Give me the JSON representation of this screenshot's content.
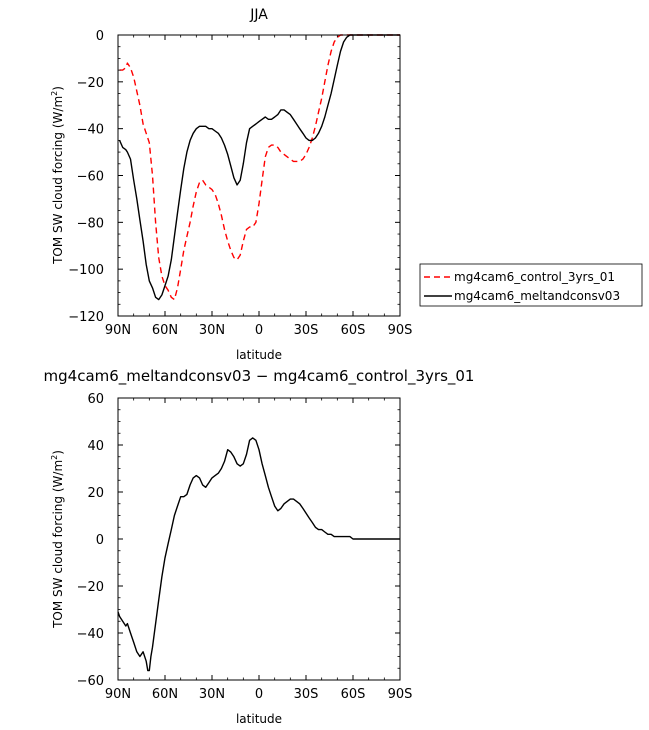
{
  "chart_data": [
    {
      "type": "line",
      "title": "JJA",
      "xlabel": "latitude",
      "ylabel": "TOM SW cloud forcing (W/m²)",
      "ylabel_text": "TOM SW cloud forcing (W/m",
      "ylabel_sup": "2",
      "ylabel_close": ")",
      "xlim": [
        90,
        -90
      ],
      "ylim": [
        -120,
        0
      ],
      "x_ticks": [
        {
          "value": 90,
          "label": "90N"
        },
        {
          "value": 60,
          "label": "60N"
        },
        {
          "value": 30,
          "label": "30N"
        },
        {
          "value": 0,
          "label": "0"
        },
        {
          "value": -30,
          "label": "30S"
        },
        {
          "value": -60,
          "label": "60S"
        },
        {
          "value": -90,
          "label": "90S"
        }
      ],
      "y_ticks": [
        0,
        -20,
        -40,
        -60,
        -80,
        -100,
        -120
      ],
      "grid": false,
      "legend": "right",
      "series": [
        {
          "name": "mg4cam6_control_3yrs_01",
          "color": "#ff0000",
          "dash": "dashed",
          "x": [
            89,
            87,
            85,
            84,
            82,
            80,
            78,
            76,
            74,
            72,
            70,
            68,
            66,
            64,
            62,
            60,
            58,
            56,
            54,
            52,
            50,
            48,
            46,
            44,
            42,
            40,
            38,
            36,
            34,
            32,
            30,
            28,
            26,
            24,
            22,
            20,
            18,
            16,
            14,
            12,
            10,
            8,
            6,
            4,
            2,
            0,
            -2,
            -4,
            -6,
            -8,
            -10,
            -12,
            -14,
            -16,
            -18,
            -20,
            -22,
            -24,
            -26,
            -28,
            -30,
            -32,
            -34,
            -36,
            -38,
            -40,
            -42,
            -44,
            -46,
            -48,
            -50,
            -52,
            -54,
            -56,
            -58,
            -60,
            -62,
            -64,
            -66,
            -68,
            -70,
            -72,
            -74,
            -76,
            -78,
            -80,
            -82,
            -84,
            -86,
            -88,
            -90
          ],
          "y": [
            -15,
            -15,
            -14,
            -12,
            -14,
            -18,
            -24,
            -30,
            -38,
            -42,
            -46,
            -60,
            -80,
            -95,
            -103,
            -107,
            -109,
            -112,
            -113,
            -108,
            -100,
            -92,
            -86,
            -80,
            -73,
            -67,
            -63,
            -62,
            -64,
            -65,
            -66,
            -68,
            -72,
            -77,
            -83,
            -88,
            -92,
            -95,
            -96,
            -94,
            -88,
            -83,
            -82,
            -82,
            -80,
            -72,
            -62,
            -52,
            -48,
            -47,
            -47,
            -48,
            -50,
            -51,
            -52,
            -53,
            -54,
            -54,
            -54,
            -53,
            -51,
            -48,
            -44,
            -39,
            -33,
            -27,
            -20,
            -13,
            -7,
            -3,
            -1,
            0,
            0,
            0,
            0,
            0,
            0,
            0,
            0,
            0,
            0,
            0,
            0,
            0,
            0,
            0,
            0,
            0,
            0,
            0,
            0
          ]
        },
        {
          "name": "mg4cam6_meltandconsv03",
          "color": "#000000",
          "dash": "solid",
          "x": [
            89,
            87,
            85,
            84,
            82,
            80,
            78,
            76,
            74,
            72,
            70,
            68,
            66,
            64,
            62,
            60,
            58,
            56,
            54,
            52,
            50,
            48,
            46,
            44,
            42,
            40,
            38,
            36,
            34,
            32,
            30,
            28,
            26,
            24,
            22,
            20,
            18,
            16,
            14,
            12,
            10,
            8,
            6,
            4,
            2,
            0,
            -2,
            -4,
            -6,
            -8,
            -10,
            -12,
            -14,
            -16,
            -18,
            -20,
            -22,
            -24,
            -26,
            -28,
            -30,
            -32,
            -34,
            -36,
            -38,
            -40,
            -42,
            -44,
            -46,
            -48,
            -50,
            -52,
            -54,
            -56,
            -58,
            -60,
            -62,
            -64,
            -66,
            -68,
            -70,
            -72,
            -74,
            -76,
            -78,
            -80,
            -82,
            -84,
            -86,
            -88,
            -90
          ],
          "y": [
            -45,
            -48,
            -49,
            -50,
            -53,
            -62,
            -70,
            -79,
            -88,
            -98,
            -105,
            -108,
            -112,
            -113,
            -111,
            -107,
            -103,
            -96,
            -86,
            -76,
            -66,
            -57,
            -50,
            -45,
            -42,
            -40,
            -39,
            -39,
            -39,
            -40,
            -40,
            -41,
            -42,
            -44,
            -47,
            -51,
            -56,
            -61,
            -64,
            -62,
            -55,
            -46,
            -40,
            -39,
            -38,
            -37,
            -36,
            -35,
            -36,
            -36,
            -35,
            -34,
            -32,
            -32,
            -33,
            -34,
            -36,
            -38,
            -40,
            -42,
            -44,
            -45,
            -45,
            -44,
            -42,
            -39,
            -35,
            -30,
            -25,
            -19,
            -13,
            -7,
            -3,
            -1,
            0,
            0,
            0,
            0,
            0,
            0,
            0,
            0,
            0,
            0,
            0,
            0,
            0,
            0,
            0,
            0,
            0
          ]
        }
      ]
    },
    {
      "type": "line",
      "title": "mg4cam6_meltandconsv03 − mg4cam6_control_3yrs_01",
      "xlabel": "latitude",
      "ylabel": "TOM SW cloud forcing (W/m²)",
      "ylabel_text": "TOM SW cloud forcing (W/m",
      "ylabel_sup": "2",
      "ylabel_close": ")",
      "xlim": [
        90,
        -90
      ],
      "ylim": [
        -60,
        60
      ],
      "x_ticks": [
        {
          "value": 90,
          "label": "90N"
        },
        {
          "value": 60,
          "label": "60N"
        },
        {
          "value": 30,
          "label": "30N"
        },
        {
          "value": 0,
          "label": "0"
        },
        {
          "value": -30,
          "label": "30S"
        },
        {
          "value": -60,
          "label": "60S"
        },
        {
          "value": -90,
          "label": "90S"
        }
      ],
      "y_ticks": [
        60,
        40,
        20,
        0,
        -20,
        -40,
        -60
      ],
      "grid": false,
      "series": [
        {
          "color": "#000000",
          "dash": "solid",
          "x": [
            90,
            89,
            87,
            85,
            84,
            82,
            80,
            78,
            76,
            74,
            72,
            71,
            70,
            69,
            68,
            66,
            64,
            62,
            60,
            58,
            56,
            54,
            52,
            50,
            48,
            46,
            44,
            42,
            40,
            38,
            36,
            34,
            32,
            30,
            28,
            26,
            24,
            22,
            20,
            18,
            16,
            14,
            12,
            10,
            8,
            6,
            4,
            2,
            0,
            -2,
            -4,
            -6,
            -8,
            -10,
            -12,
            -14,
            -16,
            -18,
            -20,
            -22,
            -24,
            -26,
            -28,
            -30,
            -32,
            -34,
            -36,
            -38,
            -40,
            -42,
            -44,
            -46,
            -48,
            -50,
            -52,
            -54,
            -56,
            -58,
            -60,
            -62,
            -64,
            -66,
            -68,
            -70,
            -72,
            -74,
            -76,
            -78,
            -80,
            -82,
            -84,
            -86,
            -88,
            -90
          ],
          "y": [
            -31,
            -33,
            -35,
            -37,
            -36,
            -40,
            -44,
            -48,
            -50,
            -48,
            -52,
            -56,
            -56,
            -50,
            -46,
            -36,
            -26,
            -16,
            -8,
            -2,
            4,
            10,
            14,
            18,
            18,
            19,
            23,
            26,
            27,
            26,
            23,
            22,
            24,
            26,
            27,
            28,
            30,
            33,
            38,
            37,
            35,
            32,
            31,
            32,
            36,
            42,
            43,
            42,
            38,
            32,
            27,
            22,
            18,
            14,
            12,
            13,
            15,
            16,
            17,
            17,
            16,
            15,
            13,
            11,
            9,
            7,
            5,
            4,
            4,
            3,
            2,
            2,
            1,
            1,
            1,
            1,
            1,
            1,
            0,
            0,
            0,
            0,
            0,
            0,
            0,
            0,
            0,
            0,
            0,
            0,
            0,
            0,
            0,
            0
          ]
        }
      ]
    }
  ]
}
